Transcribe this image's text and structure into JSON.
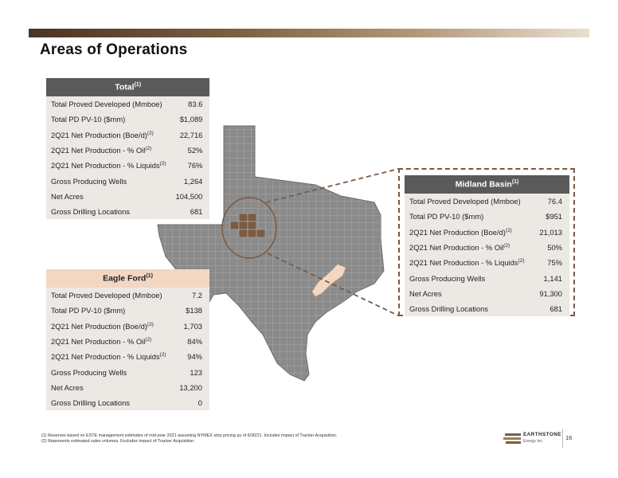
{
  "title": "Areas of Operations",
  "total": {
    "heading": "Total",
    "heading_note": "(1)",
    "rows": [
      {
        "label": "Total Proved Developed (Mmboe)",
        "note": "",
        "value": "83.6"
      },
      {
        "label": "Total PD PV-10 ($mm)",
        "note": "",
        "value": "$1,089"
      },
      {
        "label": "2Q21 Net Production (Boe/d)",
        "note": "(2)",
        "value": "22,716"
      },
      {
        "label": "2Q21 Net Production - % Oil",
        "note": "(2)",
        "value": "52%"
      },
      {
        "label": "2Q21 Net Production - % Liquids",
        "note": "(2)",
        "value": "76%"
      },
      {
        "label": "Gross Producing Wells",
        "note": "",
        "value": "1,264"
      },
      {
        "label": "Net Acres",
        "note": "",
        "value": "104,500"
      },
      {
        "label": "Gross Drilling Locations",
        "note": "",
        "value": "681"
      }
    ]
  },
  "eagle_ford": {
    "heading": "Eagle Ford",
    "heading_note": "(1)",
    "rows": [
      {
        "label": "Total Proved Developed (Mmboe)",
        "note": "",
        "value": "7.2"
      },
      {
        "label": "Total PD PV-10 ($mm)",
        "note": "",
        "value": "$138"
      },
      {
        "label": "2Q21 Net Production (Boe/d)",
        "note": "(2)",
        "value": "1,703"
      },
      {
        "label": "2Q21 Net Production - % Oil",
        "note": "(2)",
        "value": "84%"
      },
      {
        "label": "2Q21 Net Production - % Liquids",
        "note": "(2)",
        "value": "94%"
      },
      {
        "label": "Gross Producing Wells",
        "note": "",
        "value": "123"
      },
      {
        "label": "Net Acres",
        "note": "",
        "value": "13,200"
      },
      {
        "label": "Gross Drilling Locations",
        "note": "",
        "value": "0"
      }
    ]
  },
  "midland": {
    "heading": "Midland Basin",
    "heading_note": "(1)",
    "rows": [
      {
        "label": "Total Proved Developed (Mmboe)",
        "note": "",
        "value": "76.4"
      },
      {
        "label": "Total PD PV-10 ($mm)",
        "note": "",
        "value": "$951"
      },
      {
        "label": "2Q21 Net Production (Boe/d)",
        "note": "(2)",
        "value": "21,013"
      },
      {
        "label": "2Q21 Net Production - % Oil",
        "note": "(2)",
        "value": "50%"
      },
      {
        "label": "2Q21 Net Production - % Liquids",
        "note": "(2)",
        "value": "75%"
      },
      {
        "label": "Gross Producing Wells",
        "note": "",
        "value": "1,141"
      },
      {
        "label": "Net Acres",
        "note": "",
        "value": "91,300"
      },
      {
        "label": "Gross Drilling Locations",
        "note": "",
        "value": "681"
      }
    ]
  },
  "footnotes": [
    "(1)  Reserves based on ESTE management estimates of mid-year 2021 assuming NYMEX strip pricing as of 6/30/21.  Includes impact of Tracker Acquisition.",
    "(2)  Represents estimated sales volumes.  Excludes impact of Tracker Acquisition."
  ],
  "logo": {
    "name": "EARTHSTONE",
    "sub": "Energy Inc."
  },
  "page_number": "16",
  "colors": {
    "map_fill": "#8a8a8a",
    "midland_area": "#7a5c44",
    "eagle_ford_area": "#f3d7c3",
    "dashed_border": "#7a5a44"
  }
}
